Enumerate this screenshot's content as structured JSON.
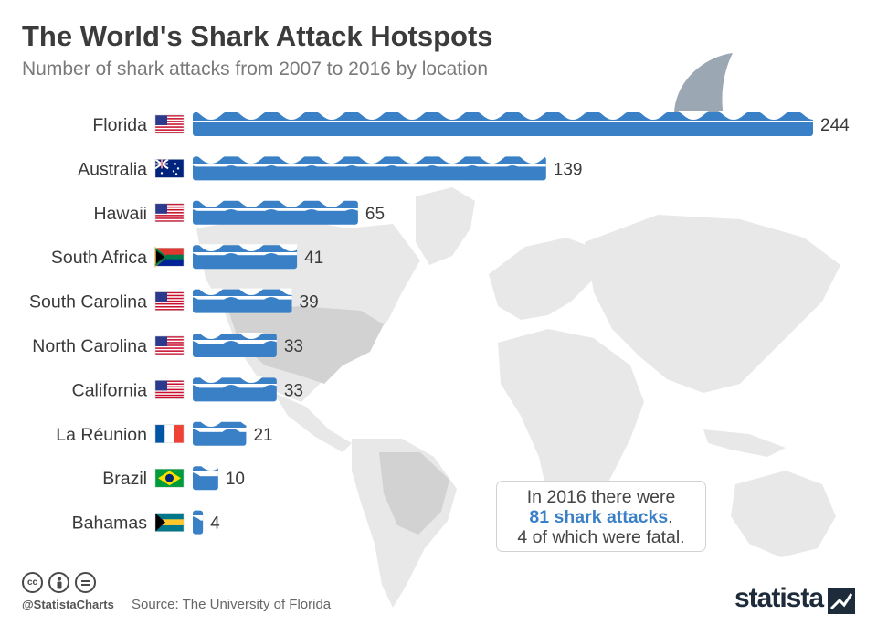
{
  "header": {
    "title": "The World's Shark Attack Hotspots",
    "subtitle": "Number of shark attacks from 2007 to 2016 by location"
  },
  "chart_data": {
    "type": "bar",
    "orientation": "horizontal",
    "title": "The World's Shark Attack Hotspots",
    "subtitle": "Number of shark attacks from 2007 to 2016 by location",
    "categories": [
      "Florida",
      "Australia",
      "Hawaii",
      "South Africa",
      "South Carolina",
      "North Carolina",
      "California",
      "La Réunion",
      "Brazil",
      "Bahamas"
    ],
    "flags": [
      "us",
      "au",
      "us",
      "za",
      "us",
      "us",
      "us",
      "fr",
      "br",
      "bs"
    ],
    "values": [
      244,
      139,
      65,
      41,
      39,
      33,
      33,
      21,
      10,
      4
    ],
    "xlim": [
      0,
      244
    ],
    "grid": false,
    "legend": "none",
    "bar_color": "#3a80c7",
    "data_labels": true
  },
  "callout": {
    "line1": "In 2016 there were",
    "highlight": "81 shark attacks",
    "line2_suffix": ".",
    "line3": "4 of which were fatal."
  },
  "footer": {
    "handle": "@StatistaCharts",
    "source": "Source: The University of Florida",
    "brand": "statista",
    "license_icons": [
      "cc-icon",
      "attribution-icon",
      "no-derivatives-icon"
    ]
  },
  "colors": {
    "bar": "#3a80c7",
    "map": "#e6e6e6",
    "map_highlight": "#cfcfcf",
    "fin": "#9aa7b3",
    "text": "#3a3a3a",
    "highlight_text": "#3a80c7"
  }
}
